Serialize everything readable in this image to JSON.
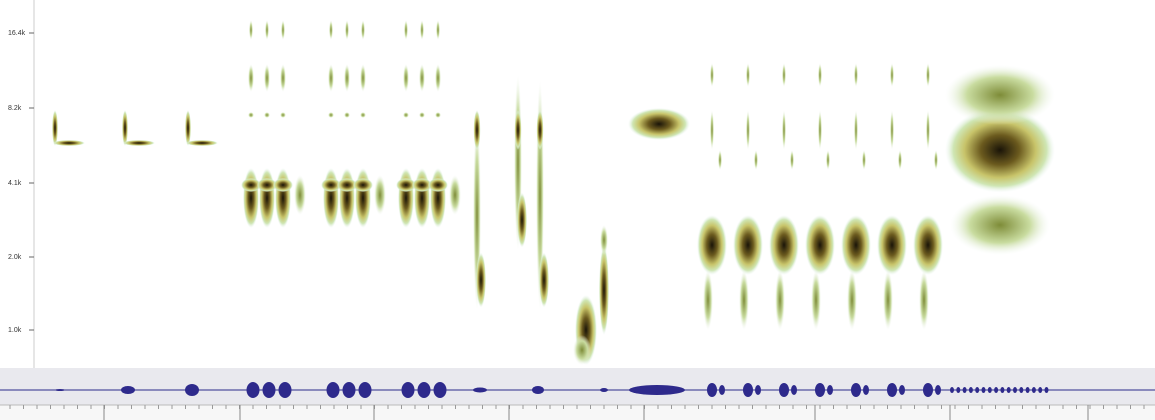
{
  "frequency_axis": {
    "labels": [
      "16.4k",
      "8.2k",
      "4.1k",
      "2.0k",
      "1.0k"
    ]
  }
}
